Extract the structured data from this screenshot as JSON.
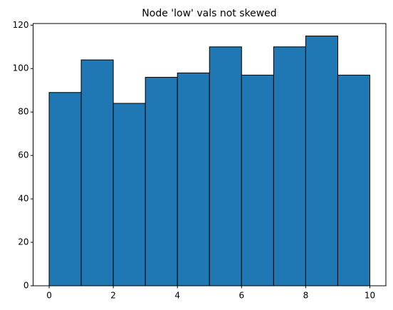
{
  "chart_data": {
    "type": "histogram",
    "title": "Node 'low' vals not skewed",
    "bins": [
      0,
      1,
      2,
      3,
      4,
      5,
      6,
      7,
      8,
      9,
      10
    ],
    "values": [
      89,
      104,
      84,
      96,
      98,
      110,
      97,
      110,
      115,
      97
    ],
    "color": "#1f77b4",
    "edgecolor": "#000000",
    "xlim": [
      -0.5,
      10.5
    ],
    "xticks": [
      0,
      2,
      4,
      6,
      8,
      10
    ],
    "ylim": [
      0,
      120.75
    ],
    "yticks": [
      0,
      20,
      40,
      60,
      80,
      100,
      120
    ]
  }
}
